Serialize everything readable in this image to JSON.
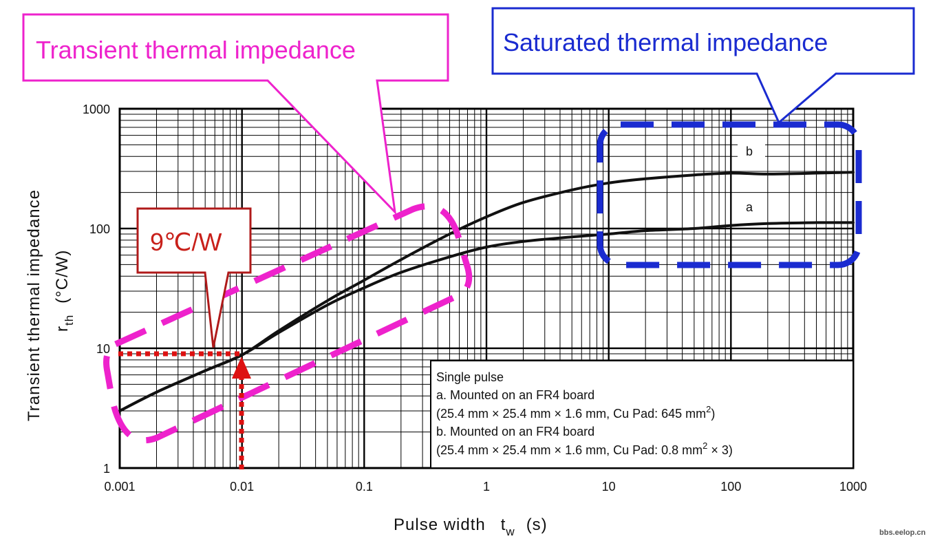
{
  "chart_data": {
    "type": "line",
    "xscale": "log",
    "yscale": "log",
    "xlim": [
      0.001,
      1000
    ],
    "ylim": [
      1,
      1000
    ],
    "grid": true,
    "x_ticks": [
      "0.001",
      "0.01",
      "0.1",
      "1",
      "10",
      "100",
      "1000"
    ],
    "y_ticks": [
      "1",
      "10",
      "100",
      "1000"
    ],
    "xlabel_main": "Pulse width",
    "xlabel_symbol": "t",
    "xlabel_sub": "w",
    "xlabel_unit": "(s)",
    "ylabel_main": "Transient thermal impedance",
    "ylabel_symbol": "r",
    "ylabel_sub": "th",
    "ylabel_unit": "(°C/W)",
    "series": [
      {
        "name": "a",
        "color": "#111111",
        "points": [
          [
            0.001,
            3.0
          ],
          [
            0.002,
            4.3
          ],
          [
            0.005,
            6.5
          ],
          [
            0.01,
            8.8
          ],
          [
            0.02,
            13.5
          ],
          [
            0.05,
            23
          ],
          [
            0.1,
            32
          ],
          [
            0.2,
            43
          ],
          [
            0.5,
            58
          ],
          [
            1,
            70
          ],
          [
            2,
            78
          ],
          [
            5,
            85
          ],
          [
            10,
            90
          ],
          [
            20,
            96
          ],
          [
            50,
            100
          ],
          [
            100,
            106
          ],
          [
            200,
            110
          ],
          [
            500,
            112
          ],
          [
            1000,
            112
          ]
        ]
      },
      {
        "name": "b",
        "color": "#111111",
        "points": [
          [
            0.001,
            3.0
          ],
          [
            0.002,
            4.3
          ],
          [
            0.005,
            6.5
          ],
          [
            0.01,
            8.8
          ],
          [
            0.02,
            14
          ],
          [
            0.05,
            25
          ],
          [
            0.1,
            37
          ],
          [
            0.2,
            55
          ],
          [
            0.5,
            90
          ],
          [
            1,
            125
          ],
          [
            2,
            165
          ],
          [
            5,
            210
          ],
          [
            10,
            240
          ],
          [
            20,
            260
          ],
          [
            50,
            280
          ],
          [
            100,
            290
          ],
          [
            200,
            285
          ],
          [
            500,
            290
          ],
          [
            1000,
            295
          ]
        ]
      }
    ],
    "series_labels": [
      "a",
      "b"
    ],
    "annotations": {
      "transient_label": "Transient thermal impedance",
      "saturated_label": "Saturated thermal impedance",
      "value_label": "9℃/W",
      "highlight_value": 9,
      "highlight_time": 0.01,
      "colors": {
        "transient": "#ee22cc",
        "saturated": "#1a2bd0",
        "value": "#c8201a",
        "value_border": "#b01a1a"
      }
    },
    "legend": {
      "placement": "bottom-right",
      "lines": [
        {
          "text": "Single pulse"
        },
        {
          "text": "a. Mounted on an FR4 board"
        },
        {
          "text": "(25.4 mm × 25.4 mm × 1.6 mm, Cu Pad: 645 mm",
          "sup": "2",
          "after": ")"
        },
        {
          "text": "b. Mounted on an FR4 board"
        },
        {
          "text": "(25.4 mm × 25.4 mm × 1.6 mm, Cu Pad: 0.8 mm",
          "sup": "2",
          "after": " × 3)"
        }
      ]
    },
    "watermark": "bbs.eelop.cn"
  }
}
